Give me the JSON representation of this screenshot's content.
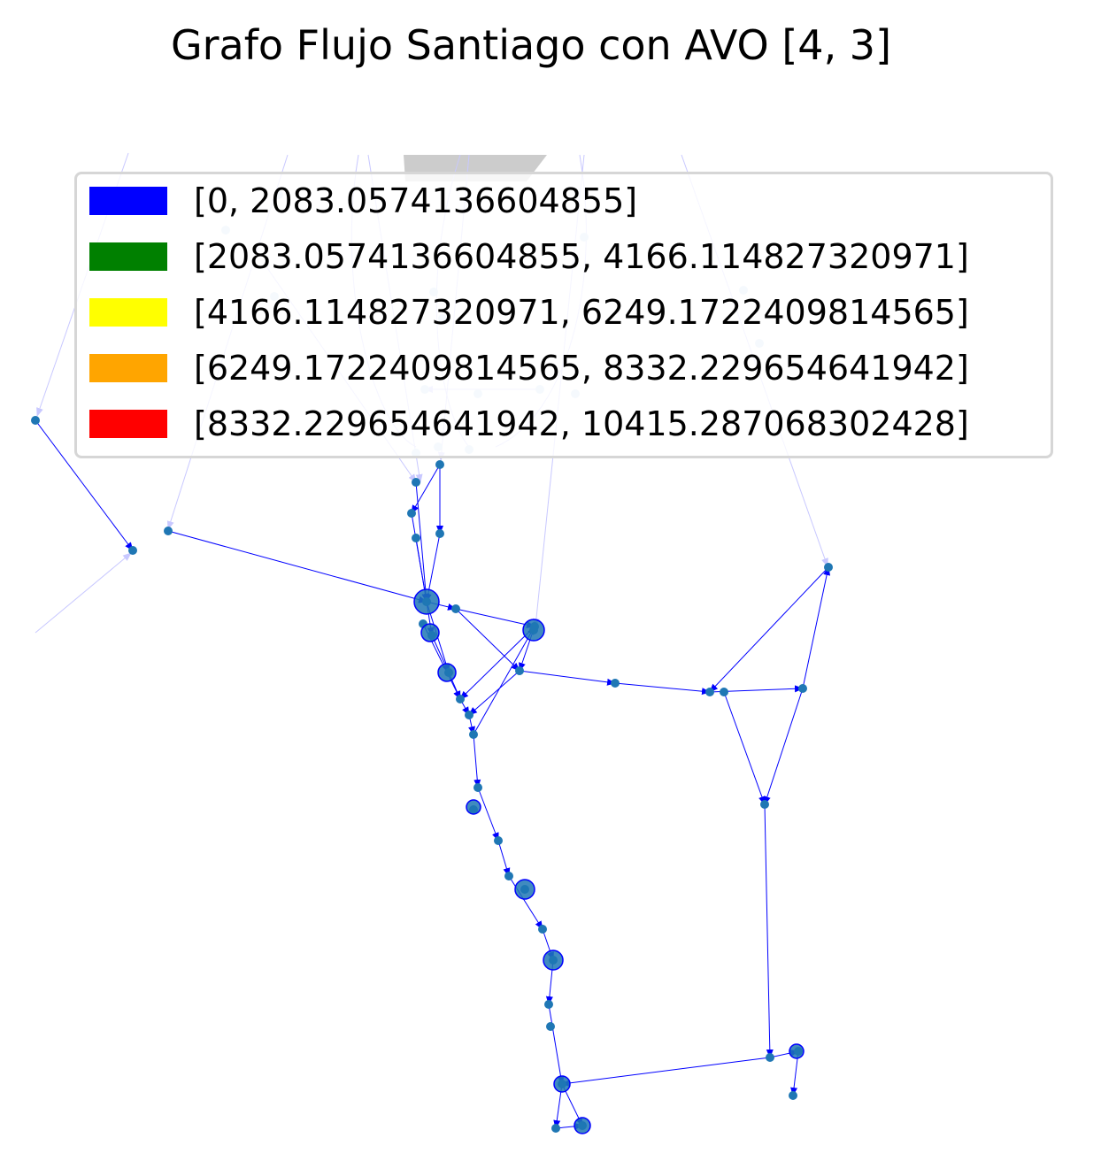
{
  "title": "Grafo Flujo Santiago con AVO [4, 3]",
  "colors": {
    "edge": "#0000ff",
    "node": "#1f77b4",
    "faded_edge": "#c8c8ff",
    "faded_node": "#c9dff0",
    "map_patch": "#cccccc"
  },
  "legend": {
    "entries": [
      {
        "label": "[0, 2083.0574136604855]",
        "color": "#0000ff"
      },
      {
        "label": "[2083.0574136604855, 4166.114827320971]",
        "color": "#008000"
      },
      {
        "label": "[4166.114827320971, 6249.1722409814565]",
        "color": "#ffff00"
      },
      {
        "label": "[6249.1722409814565, 8332.229654641942]",
        "color": "#ffa500"
      },
      {
        "label": "[8332.229654641942, 10415.287068302428]",
        "color": "#ff0000"
      }
    ]
  }
}
